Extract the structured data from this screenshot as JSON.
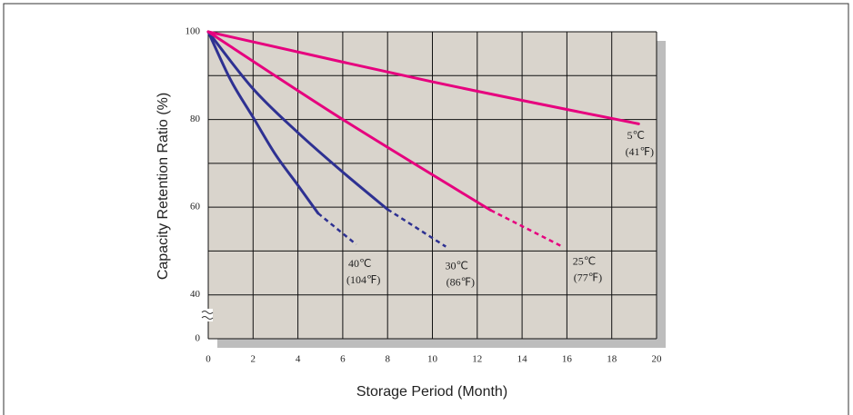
{
  "chart_data": {
    "type": "line",
    "xlabel": "Storage Period (Month)",
    "ylabel": "Capacity Retention Ratio (%)",
    "xlim": [
      0,
      20
    ],
    "xticks": [
      0,
      2,
      4,
      6,
      8,
      10,
      12,
      14,
      16,
      18,
      20
    ],
    "ylim": [
      30,
      100
    ],
    "yticks": [
      40,
      60,
      80,
      100
    ],
    "ygrid_minor": [
      50,
      70,
      90
    ],
    "y_break_label": "0",
    "grid": true,
    "series": [
      {
        "name": "40℃",
        "note": "(104℉)",
        "color": "#2e3192",
        "x": [
          0,
          1,
          2,
          3,
          4,
          4.9,
          6.6
        ],
        "values": [
          100,
          89,
          80.5,
          72,
          65,
          58.6,
          51.5
        ],
        "dashed_from": 5
      },
      {
        "name": "30℃",
        "note": "(86℉)",
        "color": "#2e3192",
        "x": [
          0,
          2,
          4,
          6,
          8,
          10.6
        ],
        "values": [
          100,
          87,
          77,
          68,
          59.5,
          51
        ],
        "dashed_from": 4
      },
      {
        "name": "25℃",
        "note": "(77℉)",
        "color": "#e6007e",
        "x": [
          0,
          6,
          12.6,
          15.8
        ],
        "values": [
          100,
          80,
          59.3,
          51
        ],
        "dashed_from": 2
      },
      {
        "name": "5℃",
        "note": "(41℉)",
        "color": "#e6007e",
        "x": [
          0,
          10,
          19.2
        ],
        "values": [
          100,
          88.6,
          79
        ]
      }
    ]
  }
}
